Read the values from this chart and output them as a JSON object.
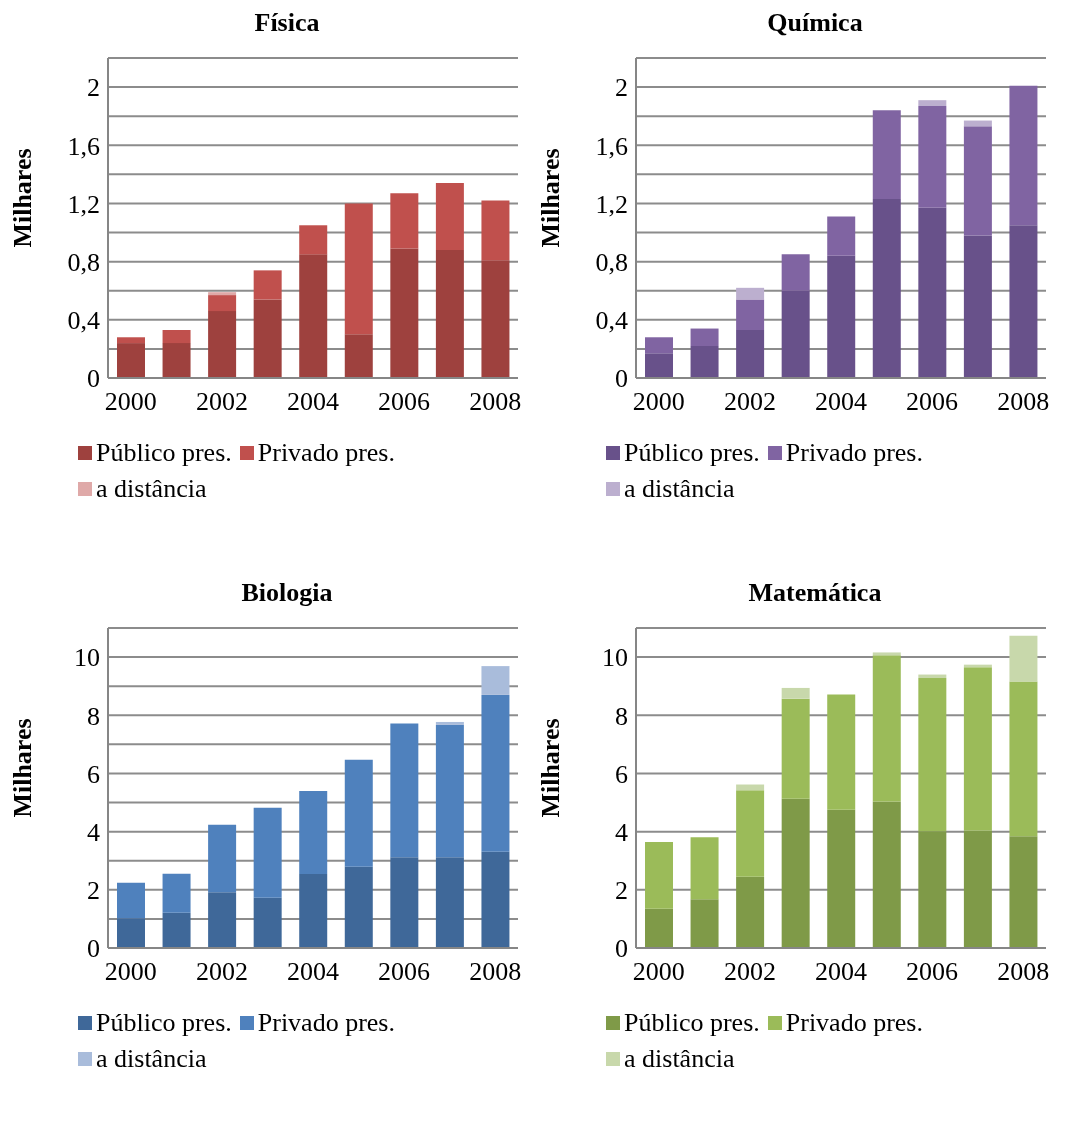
{
  "chart_data": [
    {
      "type": "bar",
      "title": "Física",
      "ylabel": "Milhares",
      "stacked": true,
      "grid": "y",
      "legend": "bottom",
      "categories": [
        "2000",
        null,
        "2002",
        null,
        "2004",
        null,
        "2006",
        null,
        "2008"
      ],
      "ylim": [
        0,
        2.2
      ],
      "yticks": [
        0,
        {
          "value": 0.2,
          "label": null
        },
        {
          "value": 0.4,
          "label": "0,4"
        },
        {
          "value": 0.6,
          "label": null
        },
        {
          "value": 0.8,
          "label": "0,8"
        },
        {
          "value": 1.0,
          "label": null
        },
        {
          "value": 1.2,
          "label": "1,2"
        },
        {
          "value": 1.4,
          "label": null
        },
        {
          "value": 1.6,
          "label": "1,6"
        },
        {
          "value": 1.8,
          "label": null
        },
        2,
        {
          "value": 2.2,
          "label": null
        }
      ],
      "series": [
        {
          "name": "Público pres.",
          "color": "#9e413e",
          "values": [
            0.24,
            0.24,
            0.46,
            0.54,
            0.85,
            0.3,
            0.89,
            0.88,
            0.81
          ]
        },
        {
          "name": "Privado pres.",
          "color": "#c0504d",
          "values": [
            0.04,
            0.09,
            0.11,
            0.2,
            0.2,
            0.9,
            0.38,
            0.46,
            0.41
          ]
        },
        {
          "name": "a distância",
          "color": "#dfa9a8",
          "values": [
            0,
            0,
            0.02,
            0,
            0,
            0,
            null,
            0,
            0
          ]
        }
      ]
    },
    {
      "type": "bar",
      "title": "Química",
      "ylabel": "Milhares",
      "stacked": true,
      "grid": "y",
      "legend": "bottom",
      "categories": [
        "2000",
        null,
        "2002",
        null,
        "2004",
        null,
        "2006",
        null,
        "2008"
      ],
      "ylim": [
        0,
        2.2
      ],
      "yticks": [
        0,
        {
          "value": 0.2,
          "label": null
        },
        {
          "value": 0.4,
          "label": "0,4"
        },
        {
          "value": 0.6,
          "label": null
        },
        {
          "value": 0.8,
          "label": "0,8"
        },
        {
          "value": 1.0,
          "label": null
        },
        {
          "value": 1.2,
          "label": "1,2"
        },
        {
          "value": 1.4,
          "label": null
        },
        {
          "value": 1.6,
          "label": "1,6"
        },
        {
          "value": 1.8,
          "label": null
        },
        2,
        {
          "value": 2.2,
          "label": null
        }
      ],
      "series": [
        {
          "name": "Público pres.",
          "color": "#68518a",
          "values": [
            0.17,
            0.22,
            0.33,
            0.6,
            0.84,
            1.23,
            1.17,
            0.98,
            1.05
          ]
        },
        {
          "name": "Privado pres.",
          "color": "#8064a2",
          "values": [
            0.11,
            0.12,
            0.21,
            0.25,
            0.27,
            0.61,
            0.7,
            0.75,
            0.96
          ]
        },
        {
          "name": "a distância",
          "color": "#bcafcf",
          "values": [
            0,
            0,
            0.08,
            0,
            0,
            0,
            0.04,
            0.04,
            0
          ]
        }
      ]
    },
    {
      "type": "bar",
      "title": "Biologia",
      "ylabel": "Milhares",
      "stacked": true,
      "grid": "y",
      "legend": "bottom",
      "categories": [
        "2000",
        null,
        "2002",
        null,
        "2004",
        null,
        "2006",
        null,
        "2008"
      ],
      "ylim": [
        0,
        11
      ],
      "yticks": [
        0,
        {
          "value": 1,
          "label": null
        },
        2,
        {
          "value": 3,
          "label": null
        },
        4,
        {
          "value": 5,
          "label": null
        },
        6,
        {
          "value": 7,
          "label": null
        },
        8,
        {
          "value": 9,
          "label": null
        },
        10,
        {
          "value": 11,
          "label": null
        }
      ],
      "series": [
        {
          "name": "Público pres.",
          "color": "#3f6899",
          "values": [
            1.02,
            1.21,
            1.92,
            1.73,
            2.54,
            2.79,
            3.12,
            3.12,
            3.31
          ]
        },
        {
          "name": "Privado pres.",
          "color": "#4f81bd",
          "values": [
            1.22,
            1.34,
            2.32,
            3.09,
            2.86,
            3.68,
            4.6,
            4.55,
            5.39
          ]
        },
        {
          "name": "a distância",
          "color": "#a9bcdb",
          "values": [
            0,
            0,
            0,
            0,
            0,
            0,
            null,
            0.1,
            0.99
          ]
        }
      ]
    },
    {
      "type": "bar",
      "title": "Matemática",
      "ylabel": "Milhares",
      "stacked": true,
      "grid": "y",
      "legend": "bottom",
      "categories": [
        "2000",
        null,
        "2002",
        null,
        "2004",
        null,
        "2006",
        null,
        "2008"
      ],
      "ylim": [
        0,
        11
      ],
      "yticks": [
        0,
        2,
        4,
        6,
        8,
        10
      ],
      "series": [
        {
          "name": "Público pres.",
          "color": "#7f9a48",
          "values": [
            1.35,
            1.68,
            2.45,
            5.13,
            4.75,
            5.04,
            4.01,
            4.04,
            3.84
          ]
        },
        {
          "name": "Privado pres.",
          "color": "#9bbb59",
          "values": [
            2.29,
            2.13,
            2.97,
            3.44,
            3.96,
            5.02,
            5.27,
            5.61,
            5.32
          ]
        },
        {
          "name": "a distância",
          "color": "#c8d8ab",
          "values": [
            0,
            0,
            0.2,
            0.37,
            0,
            0.1,
            0.12,
            0.09,
            1.57
          ]
        }
      ]
    }
  ]
}
